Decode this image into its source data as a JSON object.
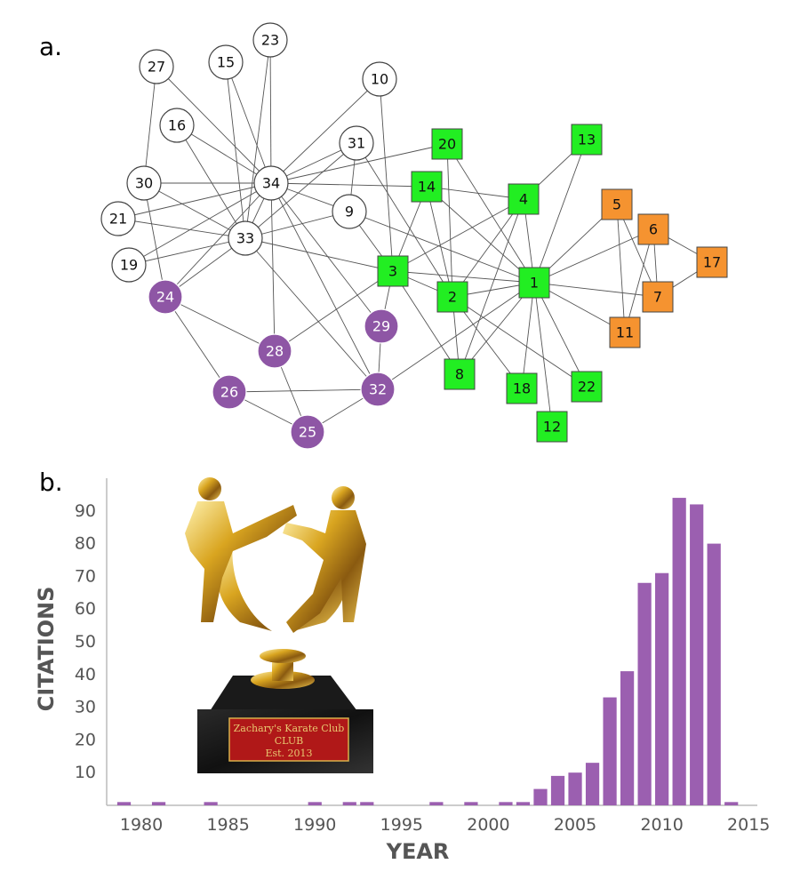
{
  "panel_a_label": "a.",
  "panel_b_label": "b.",
  "colors": {
    "white": "#ffffff",
    "green": "#22ee22",
    "orange": "#f59330",
    "purple": "#8e56a5",
    "bar": "#9b5fb0"
  },
  "network": {
    "nodes": [
      {
        "id": "1",
        "shape": "square",
        "group": "green"
      },
      {
        "id": "2",
        "shape": "square",
        "group": "green"
      },
      {
        "id": "3",
        "shape": "square",
        "group": "green"
      },
      {
        "id": "4",
        "shape": "square",
        "group": "green"
      },
      {
        "id": "5",
        "shape": "square",
        "group": "orange"
      },
      {
        "id": "6",
        "shape": "square",
        "group": "orange"
      },
      {
        "id": "7",
        "shape": "square",
        "group": "orange"
      },
      {
        "id": "8",
        "shape": "square",
        "group": "green"
      },
      {
        "id": "9",
        "shape": "circle",
        "group": "white"
      },
      {
        "id": "10",
        "shape": "circle",
        "group": "white"
      },
      {
        "id": "11",
        "shape": "square",
        "group": "orange"
      },
      {
        "id": "12",
        "shape": "square",
        "group": "green"
      },
      {
        "id": "13",
        "shape": "square",
        "group": "green"
      },
      {
        "id": "14",
        "shape": "square",
        "group": "green"
      },
      {
        "id": "15",
        "shape": "circle",
        "group": "white"
      },
      {
        "id": "16",
        "shape": "circle",
        "group": "white"
      },
      {
        "id": "17",
        "shape": "square",
        "group": "orange"
      },
      {
        "id": "18",
        "shape": "square",
        "group": "green"
      },
      {
        "id": "19",
        "shape": "circle",
        "group": "white"
      },
      {
        "id": "20",
        "shape": "square",
        "group": "green"
      },
      {
        "id": "21",
        "shape": "circle",
        "group": "white"
      },
      {
        "id": "22",
        "shape": "square",
        "group": "green"
      },
      {
        "id": "23",
        "shape": "circle",
        "group": "white"
      },
      {
        "id": "24",
        "shape": "circle",
        "group": "purple"
      },
      {
        "id": "25",
        "shape": "circle",
        "group": "purple"
      },
      {
        "id": "26",
        "shape": "circle",
        "group": "purple"
      },
      {
        "id": "27",
        "shape": "circle",
        "group": "white"
      },
      {
        "id": "28",
        "shape": "circle",
        "group": "purple"
      },
      {
        "id": "29",
        "shape": "circle",
        "group": "purple"
      },
      {
        "id": "30",
        "shape": "circle",
        "group": "white"
      },
      {
        "id": "31",
        "shape": "circle",
        "group": "white"
      },
      {
        "id": "32",
        "shape": "circle",
        "group": "purple"
      },
      {
        "id": "33",
        "shape": "circle",
        "group": "white"
      },
      {
        "id": "34",
        "shape": "circle",
        "group": "white"
      }
    ],
    "edges": [
      [
        "1",
        "2"
      ],
      [
        "1",
        "3"
      ],
      [
        "1",
        "4"
      ],
      [
        "1",
        "5"
      ],
      [
        "1",
        "6"
      ],
      [
        "1",
        "7"
      ],
      [
        "1",
        "8"
      ],
      [
        "1",
        "9"
      ],
      [
        "1",
        "11"
      ],
      [
        "1",
        "12"
      ],
      [
        "1",
        "13"
      ],
      [
        "1",
        "14"
      ],
      [
        "1",
        "18"
      ],
      [
        "1",
        "20"
      ],
      [
        "1",
        "22"
      ],
      [
        "1",
        "32"
      ],
      [
        "2",
        "3"
      ],
      [
        "2",
        "4"
      ],
      [
        "2",
        "8"
      ],
      [
        "2",
        "14"
      ],
      [
        "2",
        "18"
      ],
      [
        "2",
        "20"
      ],
      [
        "2",
        "22"
      ],
      [
        "2",
        "31"
      ],
      [
        "3",
        "4"
      ],
      [
        "3",
        "8"
      ],
      [
        "3",
        "9"
      ],
      [
        "3",
        "10"
      ],
      [
        "3",
        "14"
      ],
      [
        "3",
        "28"
      ],
      [
        "3",
        "29"
      ],
      [
        "3",
        "33"
      ],
      [
        "4",
        "8"
      ],
      [
        "4",
        "13"
      ],
      [
        "4",
        "14"
      ],
      [
        "5",
        "7"
      ],
      [
        "5",
        "11"
      ],
      [
        "6",
        "7"
      ],
      [
        "6",
        "11"
      ],
      [
        "6",
        "17"
      ],
      [
        "7",
        "17"
      ],
      [
        "9",
        "31"
      ],
      [
        "9",
        "33"
      ],
      [
        "9",
        "34"
      ],
      [
        "10",
        "34"
      ],
      [
        "14",
        "34"
      ],
      [
        "15",
        "33"
      ],
      [
        "15",
        "34"
      ],
      [
        "16",
        "33"
      ],
      [
        "16",
        "34"
      ],
      [
        "19",
        "33"
      ],
      [
        "19",
        "34"
      ],
      [
        "20",
        "34"
      ],
      [
        "21",
        "33"
      ],
      [
        "21",
        "34"
      ],
      [
        "23",
        "33"
      ],
      [
        "23",
        "34"
      ],
      [
        "24",
        "26"
      ],
      [
        "24",
        "28"
      ],
      [
        "24",
        "30"
      ],
      [
        "24",
        "33"
      ],
      [
        "24",
        "34"
      ],
      [
        "25",
        "26"
      ],
      [
        "25",
        "28"
      ],
      [
        "25",
        "32"
      ],
      [
        "26",
        "32"
      ],
      [
        "27",
        "30"
      ],
      [
        "27",
        "34"
      ],
      [
        "28",
        "34"
      ],
      [
        "29",
        "32"
      ],
      [
        "29",
        "34"
      ],
      [
        "30",
        "33"
      ],
      [
        "30",
        "34"
      ],
      [
        "31",
        "33"
      ],
      [
        "31",
        "34"
      ],
      [
        "32",
        "33"
      ],
      [
        "32",
        "34"
      ],
      [
        "33",
        "34"
      ]
    ]
  },
  "chart_data": {
    "type": "bar",
    "xlabel": "YEAR",
    "ylabel": "CITATIONS",
    "xlim": [
      1978,
      2015.5
    ],
    "ylim": [
      0,
      100
    ],
    "yticks": [
      10,
      20,
      30,
      40,
      50,
      60,
      70,
      80,
      90
    ],
    "xticks": [
      1980,
      1985,
      1990,
      1995,
      2000,
      2005,
      2010,
      2015
    ],
    "x": [
      1979,
      1981,
      1984,
      1990,
      1992,
      1993,
      1997,
      1999,
      2001,
      2002,
      2003,
      2004,
      2005,
      2006,
      2007,
      2008,
      2009,
      2010,
      2011,
      2012,
      2013,
      2014
    ],
    "values": [
      1,
      1,
      1,
      1,
      1,
      1,
      1,
      1,
      1,
      1,
      5,
      9,
      10,
      13,
      33,
      41,
      68,
      71,
      94,
      92,
      80,
      1
    ]
  },
  "trophy": {
    "plaque_lines": [
      "Zachary's Karate Club",
      "CLUB",
      "Est. 2013"
    ]
  }
}
